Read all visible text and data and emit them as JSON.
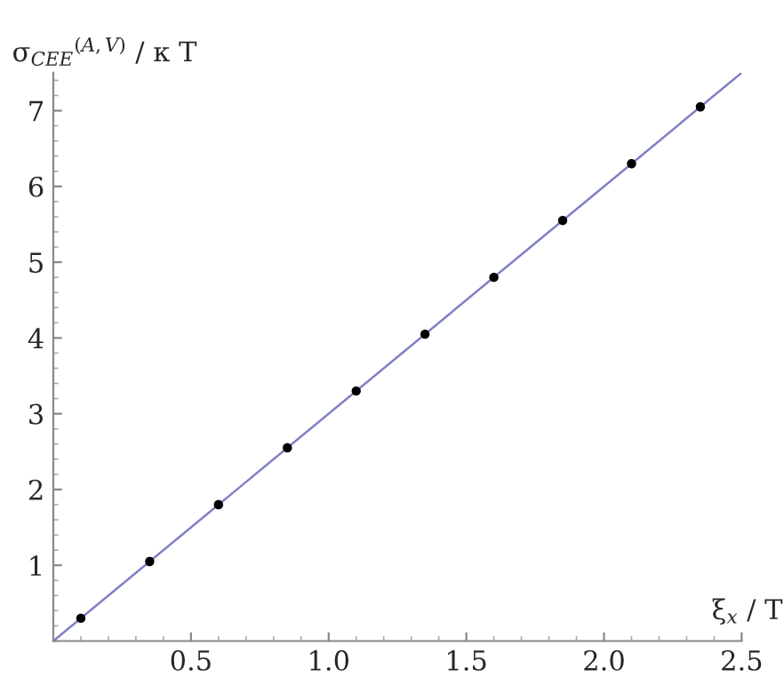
{
  "chart_data": {
    "type": "scatter",
    "xlabel": "ξ$_{x}$ / T",
    "ylabel": "σ$_{CEE}$$^{(A,V)}$ / κ T",
    "x": [
      0.1,
      0.35,
      0.6,
      0.85,
      1.1,
      1.35,
      1.6,
      1.85,
      2.1,
      2.35
    ],
    "series": [
      {
        "type": "line",
        "color": "#7f7fc8",
        "x": [
          0,
          2.5
        ],
        "values": [
          0,
          7.5
        ],
        "marker": "none"
      },
      {
        "color": "#000000",
        "values": [
          0.3,
          1.05,
          1.8,
          2.55,
          3.3,
          4.05,
          4.8,
          5.55,
          6.3,
          7.05
        ],
        "marker": "circle"
      }
    ],
    "xlim": [
      0,
      2.5
    ],
    "ylim": [
      0,
      7.5
    ],
    "xticks": [
      0.5,
      {
        "value": 1.0,
        "label": "1.0"
      },
      1.5,
      {
        "value": 2.0,
        "label": "2.0"
      },
      2.5
    ],
    "yticks": [
      1,
      2,
      3,
      4,
      5,
      6,
      7
    ],
    "grid": false
  }
}
